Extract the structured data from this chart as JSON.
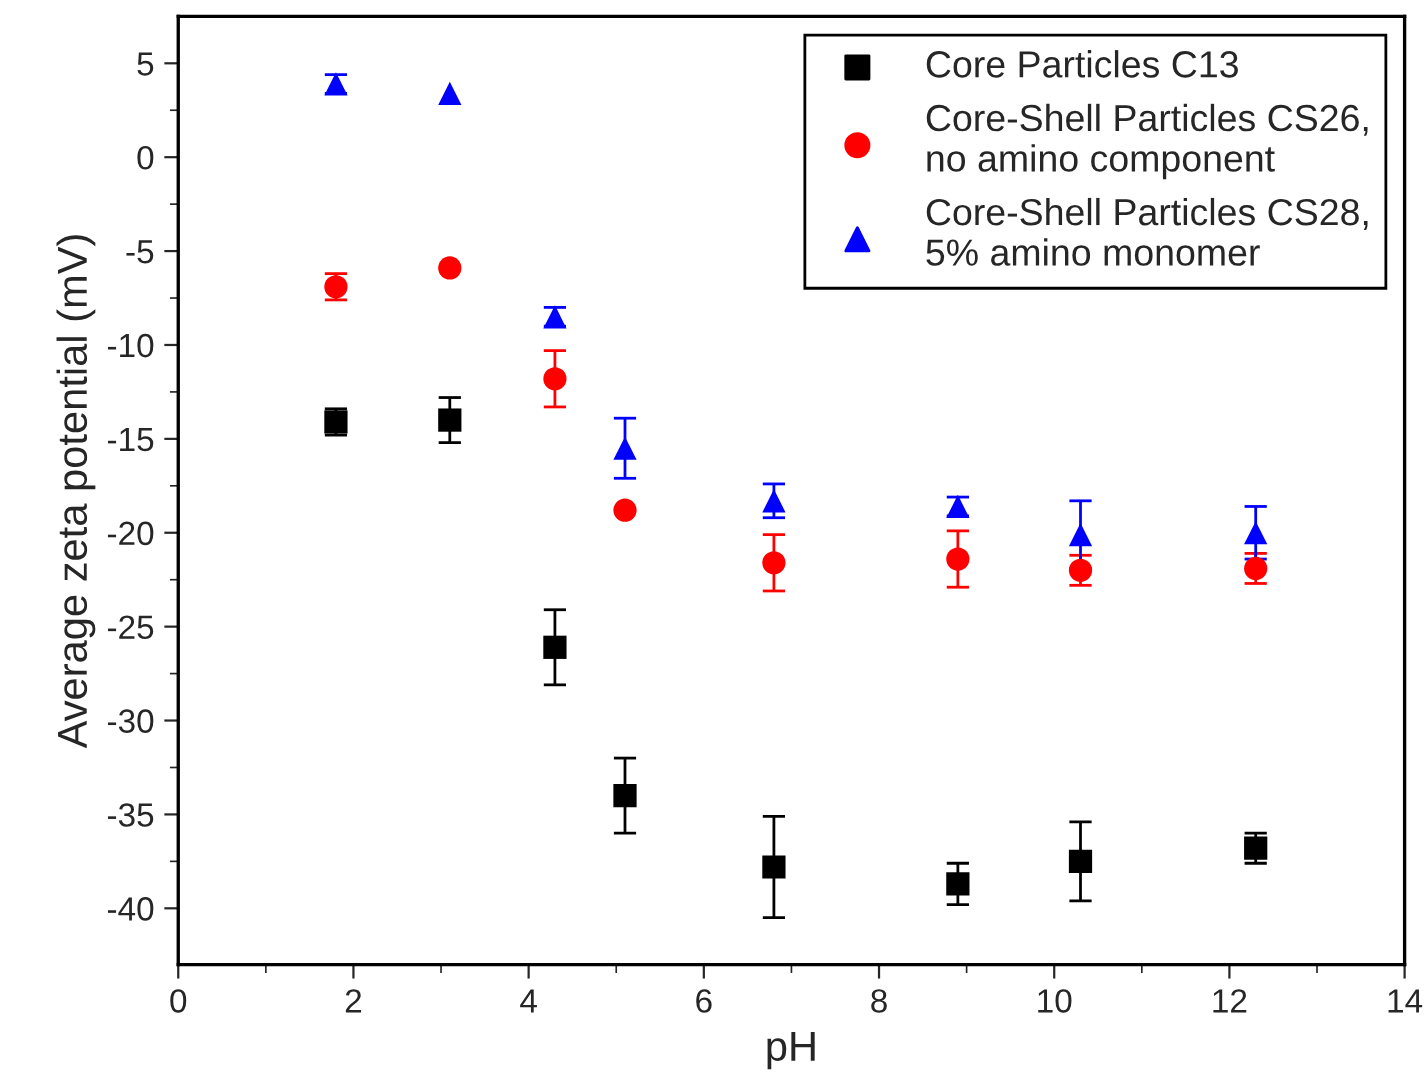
{
  "chart_data": {
    "type": "scatter",
    "xlabel": "pH",
    "ylabel": "Average zeta potential (mV)",
    "x": [
      1.8,
      3.1,
      4.3,
      5.1,
      6.8,
      8.9,
      10.3,
      12.3
    ],
    "series": [
      {
        "name": "Core Particles C13",
        "color": "#000000",
        "marker": "square",
        "values": [
          -14.1,
          -14.0,
          -26.1,
          -34.0,
          -37.8,
          -38.7,
          -37.5,
          -36.8
        ],
        "errors": [
          0.7,
          1.2,
          2.0,
          2.0,
          2.7,
          1.1,
          2.1,
          0.8
        ]
      },
      {
        "name": "Core-Shell Particles CS26,\nno amino component",
        "color": "#ff0000",
        "marker": "circle",
        "values": [
          -6.9,
          -5.9,
          -11.8,
          -18.8,
          -21.6,
          -21.4,
          -22.0,
          -21.9
        ],
        "errors": [
          0.7,
          null,
          1.5,
          null,
          1.5,
          1.5,
          0.8,
          0.8
        ]
      },
      {
        "name": "Core-Shell Particles CS28,\n5% amino monomer",
        "color": "#0000ff",
        "marker": "triangle",
        "values": [
          3.9,
          3.4,
          -8.5,
          -15.5,
          -18.3,
          -18.6,
          -20.1,
          -20.0
        ],
        "errors": [
          0.5,
          null,
          0.5,
          1.6,
          0.9,
          0.5,
          1.8,
          1.4
        ]
      }
    ],
    "xlim": [
      0,
      14
    ],
    "xticks": [
      0,
      2,
      4,
      6,
      8,
      10,
      12,
      14
    ],
    "ylim": [
      -43,
      7.5
    ],
    "yticks": [
      5,
      0,
      -5,
      -10,
      -15,
      -20,
      -25,
      -30,
      -35,
      -40
    ],
    "grid": false,
    "legend": "top right"
  }
}
